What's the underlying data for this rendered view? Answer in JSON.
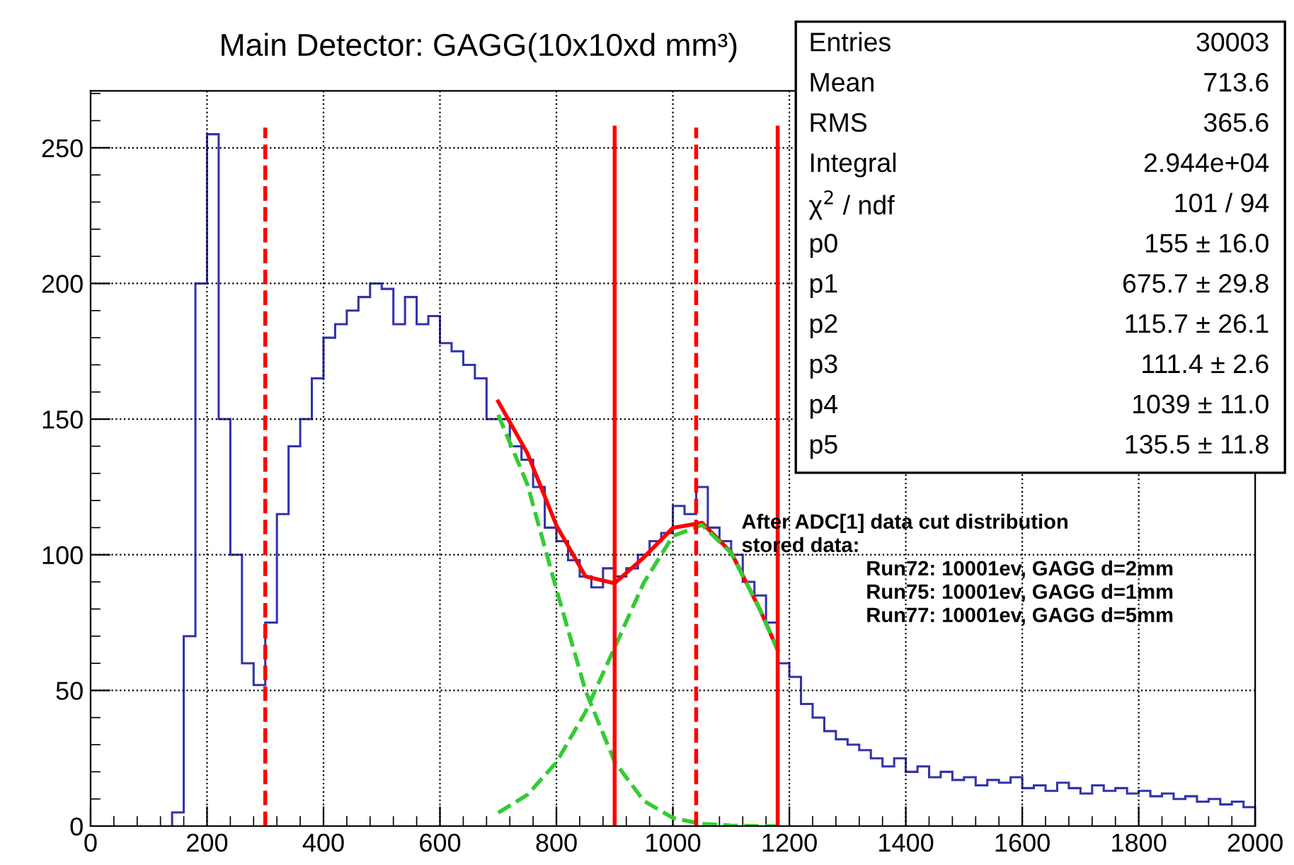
{
  "chart_data": {
    "type": "histogram",
    "title": "Main Detector: GAGG(10x10xd mm³)",
    "xlim": [
      0,
      2000
    ],
    "ylim": [
      0,
      271
    ],
    "xticks": [
      0,
      200,
      400,
      600,
      800,
      1000,
      1200,
      1400,
      1600,
      1800,
      2000
    ],
    "yticks": [
      0,
      50,
      100,
      150,
      200,
      250
    ],
    "grid": true,
    "series": [
      {
        "type": "histogram",
        "color": "#3333aa",
        "bins": [
          140,
          160,
          180,
          200,
          220,
          240,
          260,
          280,
          300,
          320,
          340,
          360,
          380,
          400,
          420,
          440,
          460,
          480,
          500,
          520,
          540,
          560,
          580,
          600,
          620,
          640,
          660,
          680,
          700,
          720,
          740,
          760,
          780,
          800,
          820,
          840,
          860,
          880,
          900,
          920,
          940,
          960,
          980,
          1000,
          1020,
          1040,
          1060,
          1080,
          1100,
          1120,
          1140,
          1160,
          1180,
          1200,
          1220,
          1240,
          1260,
          1280,
          1300,
          1320,
          1340,
          1360,
          1380,
          1400,
          1420,
          1440,
          1460,
          1480,
          1500,
          1520,
          1540,
          1560,
          1580,
          1600,
          1620,
          1640,
          1660,
          1680,
          1700,
          1720,
          1740,
          1760,
          1780,
          1800,
          1820,
          1840,
          1860,
          1880,
          1900,
          1920,
          1940,
          1960,
          1980,
          2000
        ],
        "values": [
          5,
          70,
          200,
          255,
          150,
          100,
          60,
          52,
          75,
          115,
          140,
          150,
          165,
          180,
          185,
          190,
          195,
          200,
          198,
          185,
          195,
          185,
          188,
          178,
          175,
          170,
          165,
          150,
          150,
          140,
          135,
          125,
          110,
          105,
          98,
          92,
          88,
          95,
          92,
          95,
          100,
          105,
          108,
          118,
          115,
          125,
          110,
          105,
          100,
          90,
          85,
          75,
          60,
          55,
          45,
          40,
          35,
          32,
          30,
          28,
          25,
          22,
          25,
          20,
          22,
          18,
          20,
          17,
          18,
          15,
          17,
          16,
          18,
          14,
          15,
          13,
          16,
          14,
          12,
          15,
          13,
          14,
          12,
          13,
          11,
          12,
          10,
          11,
          9,
          10,
          8,
          9,
          7
        ]
      },
      {
        "type": "line",
        "color": "#ff0000",
        "line_style": "solid",
        "x": [
          700,
          750,
          800,
          850,
          900,
          950,
          1000,
          1050,
          1100,
          1150,
          1180
        ],
        "values": [
          156.5,
          137.5,
          110.8,
          92.0,
          89.5,
          99.0,
          109.9,
          111.8,
          100.9,
          79.6,
          64.9
        ]
      },
      {
        "type": "line",
        "color": "#33cc33",
        "line_style": "dashed",
        "x": [
          700,
          750,
          800,
          850,
          900,
          950,
          1000,
          1050,
          1100,
          1150,
          1180
        ],
        "values": [
          151.6,
          126,
          87.3,
          49.9,
          23.7,
          9.3,
          3.0,
          0.8,
          0.2,
          0,
          0
        ]
      },
      {
        "type": "line",
        "color": "#33cc33",
        "line_style": "dashed",
        "x": [
          700,
          750,
          800,
          850,
          900,
          950,
          1000,
          1050,
          1100,
          1150,
          1180
        ],
        "values": [
          4.9,
          11.5,
          23.5,
          42.1,
          65.8,
          89.7,
          106.9,
          111.0,
          100.7,
          79.6,
          64.9
        ]
      }
    ],
    "ref_lines": [
      {
        "axis": "x",
        "value": 300,
        "color": "#ff0000",
        "line_style": "dashed"
      },
      {
        "axis": "x",
        "value": 900,
        "color": "#ff0000",
        "line_style": "solid"
      },
      {
        "axis": "x",
        "value": 1040,
        "color": "#ff0000",
        "line_style": "dashed"
      },
      {
        "axis": "x",
        "value": 1180,
        "color": "#ff0000",
        "line_style": "solid"
      }
    ],
    "annotations": [
      "Entries",
      "30003",
      "Mean",
      "713.6",
      "RMS",
      "365.6",
      "Integral",
      "2.944e+04",
      "χ$^{2}$ / ndf",
      "101 / 94",
      "p0",
      "155 ± 16.0",
      "p1",
      "675.7 ± 29.8",
      "p2",
      "115.7 ± 26.1",
      "p3",
      "111.4 ± 2.6",
      "p4",
      "1039 ± 11.0",
      "p5",
      "135.5 ± 11.8",
      "After ADC[1] data cut distribution",
      "stored data:",
      "Run72: 10001ev, GAGG d=2mm",
      "Run75: 10001ev, GAGG d=1mm",
      "Run77: 10001ev, GAGG d=5mm"
    ]
  }
}
